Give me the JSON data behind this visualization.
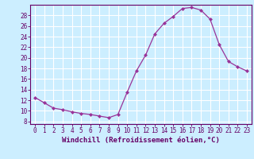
{
  "x": [
    0,
    1,
    2,
    3,
    4,
    5,
    6,
    7,
    8,
    9,
    10,
    11,
    12,
    13,
    14,
    15,
    16,
    17,
    18,
    19,
    20,
    21,
    22,
    23
  ],
  "y": [
    12.5,
    11.5,
    10.5,
    10.2,
    9.8,
    9.5,
    9.3,
    9.0,
    8.7,
    9.3,
    13.5,
    17.5,
    20.5,
    24.5,
    26.5,
    27.8,
    29.3,
    29.5,
    29.0,
    27.3,
    22.5,
    19.3,
    18.3,
    17.5
  ],
  "line_color": "#993399",
  "marker": "D",
  "markersize": 2.0,
  "linewidth": 0.9,
  "xlim": [
    -0.5,
    23.5
  ],
  "ylim": [
    7.5,
    30.0
  ],
  "yticks": [
    8,
    10,
    12,
    14,
    16,
    18,
    20,
    22,
    24,
    26,
    28
  ],
  "xticks": [
    0,
    1,
    2,
    3,
    4,
    5,
    6,
    7,
    8,
    9,
    10,
    11,
    12,
    13,
    14,
    15,
    16,
    17,
    18,
    19,
    20,
    21,
    22,
    23
  ],
  "xlabel": "Windchill (Refroidissement éolien,°C)",
  "background_color": "#cceeff",
  "grid_color": "#ffffff",
  "axis_color": "#660066",
  "label_color": "#660066",
  "tick_color": "#660066",
  "xlabel_fontsize": 6.5,
  "tick_fontsize": 5.5
}
